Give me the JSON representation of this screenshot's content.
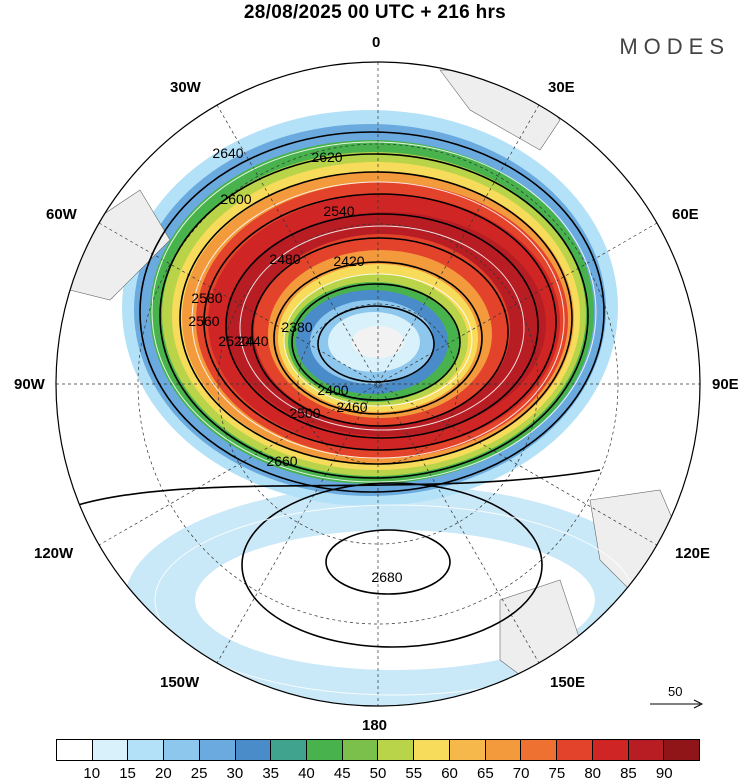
{
  "title": "28/08/2025  00 UTC  + 216 hrs",
  "brand": "MODES",
  "longitude_labels": {
    "top": "0",
    "bottom": "180",
    "left": "90W",
    "right": "90E",
    "top_left": "30W",
    "top_right": "30E",
    "upper_left": "60W",
    "upper_right": "60E",
    "lower_left": "120W",
    "lower_right": "120E",
    "bottom_left": "150W",
    "bottom_right": "150E"
  },
  "contour_labels": [
    "2640",
    "2620",
    "2600",
    "2540",
    "2580",
    "2560",
    "2480",
    "2420",
    "2380",
    "2440",
    "2520",
    "2400",
    "2500",
    "2460",
    "2660",
    "2680"
  ],
  "reference_vector": "50",
  "colorbar": {
    "colors": [
      "#ffffff",
      "#d8f1fb",
      "#b3e1f7",
      "#8dc7ee",
      "#6aaadf",
      "#4a8cc9",
      "#3fa38e",
      "#48b34c",
      "#7bc04a",
      "#bad44a",
      "#f6dc5a",
      "#f6b84a",
      "#f39a3c",
      "#ee7131",
      "#e3432b",
      "#cf2625",
      "#b71d22",
      "#8f1518"
    ],
    "ticks": [
      "10",
      "15",
      "20",
      "25",
      "30",
      "35",
      "40",
      "45",
      "50",
      "55",
      "60",
      "65",
      "70",
      "75",
      "80",
      "85",
      "90"
    ]
  }
}
